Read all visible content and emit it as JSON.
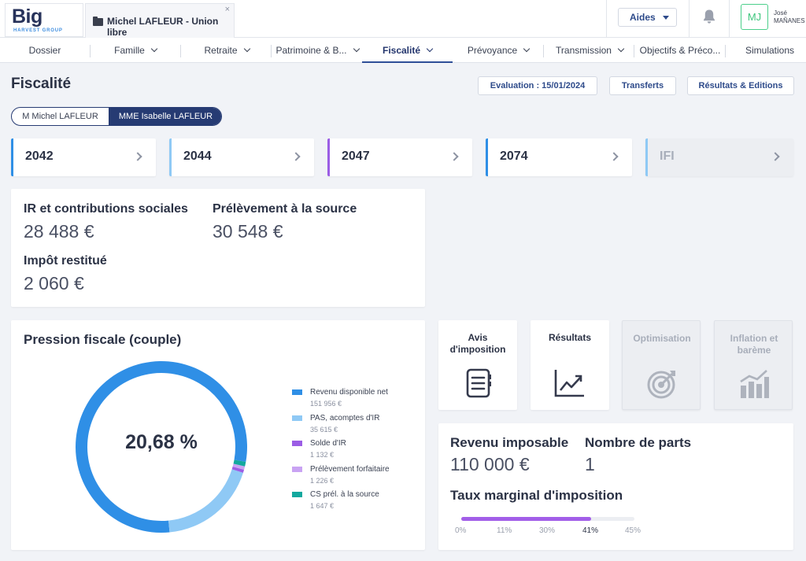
{
  "app": {
    "logo_main": "Big",
    "logo_sub": "HARVEST GROUP",
    "client_tab": "Michel LAFLEUR - Union libre",
    "close_glyph": "×",
    "aides_label": "Aides",
    "user_initials": "MJ",
    "user_first": "José",
    "user_last": "MAÑANES"
  },
  "nav": {
    "items": [
      "Dossier",
      "Famille",
      "Retraite",
      "Patrimoine & B...",
      "Fiscalité",
      "Prévoyance",
      "Transmission",
      "Objectifs & Préco...",
      "Simulations"
    ],
    "active": "Fiscalité"
  },
  "page": {
    "title": "Fiscalité",
    "buttons": {
      "evaluation": "Evaluation : 15/01/2024",
      "transferts": "Transferts",
      "resultats": "Résultats & Editions"
    },
    "persons": [
      "M Michel LAFLEUR",
      "MME Isabelle LAFLEUR"
    ],
    "selected_person": "MME Isabelle LAFLEUR"
  },
  "forms": [
    {
      "label": "2042",
      "color": "#2f8fe6"
    },
    {
      "label": "2044",
      "color": "#8fc9f5"
    },
    {
      "label": "2047",
      "color": "#9b5de5"
    },
    {
      "label": "2074",
      "color": "#2f8fe6"
    },
    {
      "label": "IFI",
      "color": "#8fc9f5"
    }
  ],
  "summary": {
    "ir_label": "IR et contributions sociales",
    "ir_value": "28 488 €",
    "pas_label": "Prélèvement à la source",
    "pas_value": "30 548 €",
    "restitue_label": "Impôt restitué",
    "restitue_value": "2 060 €"
  },
  "pression": {
    "title": "Pression fiscale (couple)",
    "center_value": "20,68 %"
  },
  "chart_data": {
    "type": "pie",
    "title": "Pression fiscale (couple)",
    "center_label": "20,68 %",
    "series": [
      {
        "name": "Revenu disponible net",
        "value": 151956,
        "value_label": "151 956 €",
        "color": "#2f8fe6"
      },
      {
        "name": "PAS, acomptes d'IR",
        "value": 35615,
        "value_label": "35 615 €",
        "color": "#8fc9f5"
      },
      {
        "name": "Solde d'IR",
        "value": 1132,
        "value_label": "1 132 €",
        "color": "#9b5de5"
      },
      {
        "name": "Prélèvement forfaitaire",
        "value": 1226,
        "value_label": "1 226 €",
        "color": "#c9a3f3"
      },
      {
        "name": "CS prél. à la source",
        "value": 1647,
        "value_label": "1 647 €",
        "color": "#13a89e"
      }
    ],
    "legend": "right"
  },
  "tiles": {
    "avis": "Avis d'imposition",
    "resultats": "Résultats",
    "optimisation": "Optimisation",
    "inflation": "Inflation et barème"
  },
  "revenu": {
    "revenu_label": "Revenu imposable",
    "revenu_value": "110 000 €",
    "parts_label": "Nombre de parts",
    "parts_value": "1",
    "tmi_label": "Taux marginal d'imposition",
    "tmi_ticks": [
      "0%",
      "11%",
      "30%",
      "41%",
      "45%"
    ],
    "tmi_selected": "41%",
    "tmi_fill_fraction": 0.75
  }
}
